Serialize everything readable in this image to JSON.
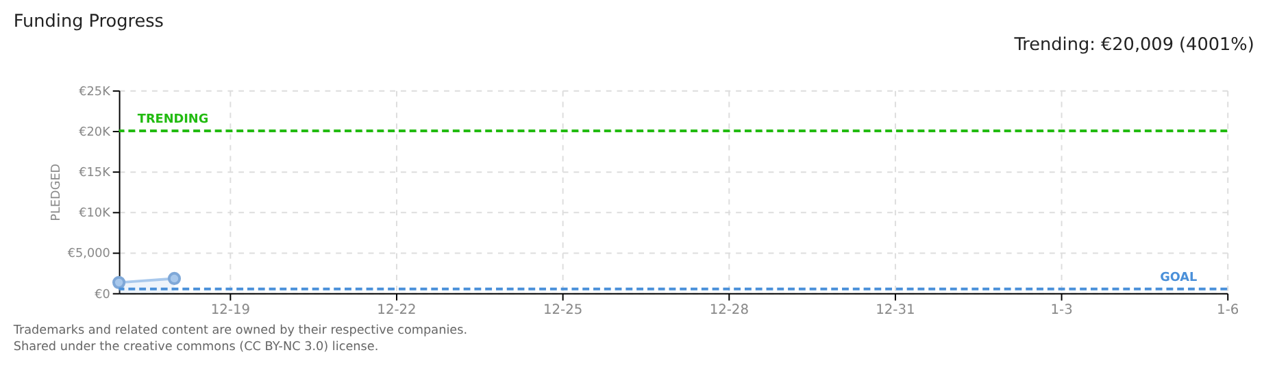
{
  "chart_data": {
    "type": "area",
    "title": "Funding Progress",
    "ylabel": "PLEDGED",
    "categories": [
      null,
      null,
      "12-19",
      null,
      null,
      "12-22",
      null,
      null,
      "12-25",
      null,
      null,
      "12-28",
      null,
      null,
      "12-31",
      null,
      null,
      "1-3",
      null,
      null,
      "1-6"
    ],
    "series": [
      {
        "color": "#a8c8ec",
        "values": [
          1300,
          1800,
          null,
          null,
          null,
          null,
          null,
          null,
          null,
          null,
          null,
          null,
          null,
          null,
          null,
          null,
          null,
          null,
          null,
          null,
          null
        ]
      }
    ],
    "ylim": [
      0,
      25000
    ],
    "yticks": [
      {
        "value": 0,
        "label": "€0"
      },
      {
        "value": 5000,
        "label": "€5,000"
      },
      {
        "value": 10000,
        "label": "€10K"
      },
      {
        "value": 15000,
        "label": "€15K"
      },
      {
        "value": 20000,
        "label": "€20K"
      },
      {
        "value": 25000,
        "label": "€25K"
      }
    ],
    "ref_lines": [
      {
        "axis": "y",
        "value": 20009,
        "label": "TRENDING",
        "color": "#22bb11",
        "line_style": "dashed"
      },
      {
        "axis": "y",
        "value": 500,
        "label": "GOAL",
        "color": "#4a90d9",
        "line_style": "dashed"
      }
    ],
    "annotations": [
      "Trending: €20,009 (4001%)",
      "Trademarks and related content are owned by their respective companies.",
      "Shared under the creative commons (CC BY-NC 3.0) license."
    ],
    "grid": true,
    "marker": "circle",
    "line_style": "solid"
  }
}
